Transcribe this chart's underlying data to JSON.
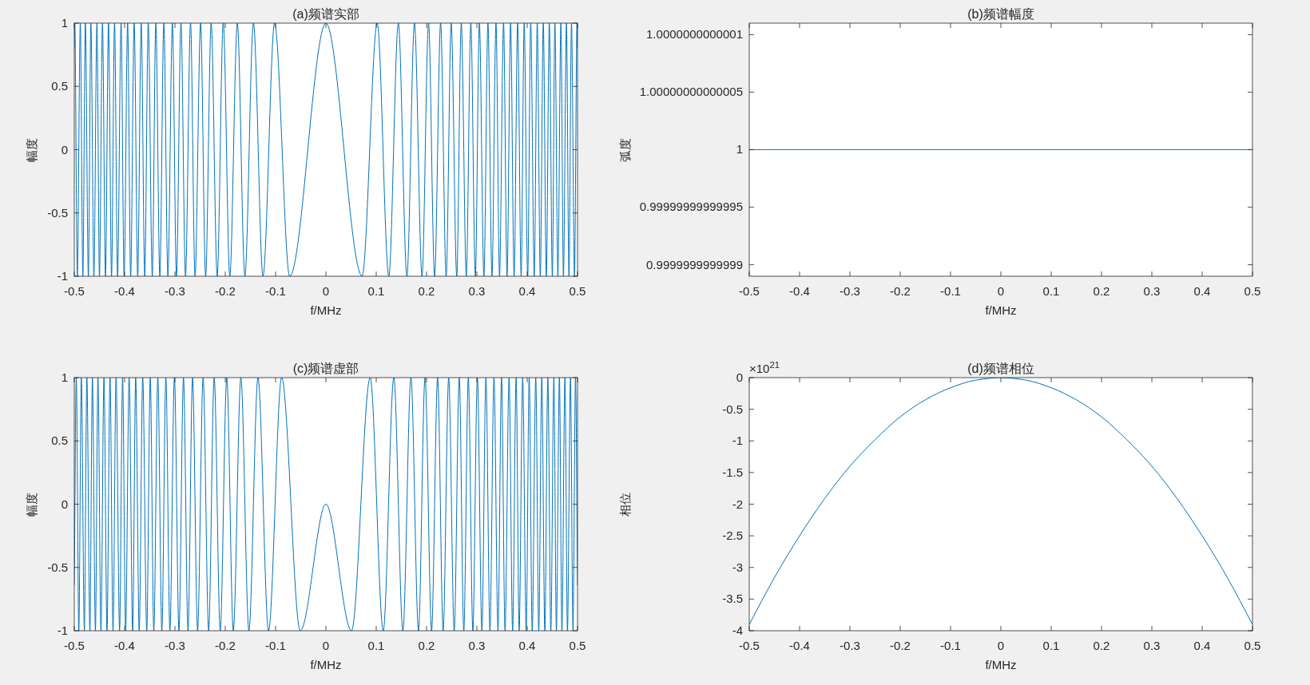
{
  "chart_data": [
    {
      "type": "line",
      "title": "(a)频谱实部",
      "xlabel": "f/MHz",
      "ylabel": "幅度",
      "xlim": [
        -0.5,
        0.5
      ],
      "xticks": [
        -0.5,
        -0.4,
        -0.3,
        -0.2,
        -0.1,
        0,
        0.1,
        0.2,
        0.3,
        0.4,
        0.5
      ],
      "ylim": [
        -1,
        1
      ],
      "yticks": [
        -1,
        -0.5,
        0,
        0.5,
        1
      ],
      "grid": false,
      "series": [
        {
          "color": "#0072bd",
          "x": [
            -0.5,
            -0.499,
            -0.494,
            -0.488,
            -0.483,
            -0.478,
            -0.472,
            -0.467,
            -0.461,
            -0.455,
            -0.45,
            -0.444,
            -0.438,
            -0.432,
            -0.426,
            -0.42,
            -0.414,
            -0.407,
            -0.401,
            -0.394,
            -0.388,
            -0.381,
            -0.374,
            -0.367,
            -0.36,
            -0.353,
            -0.345,
            -0.338,
            -0.33,
            -0.322,
            -0.314,
            -0.305,
            -0.297,
            -0.288,
            -0.279,
            -0.269,
            -0.26,
            -0.249,
            -0.239,
            -0.228,
            -0.216,
            -0.204,
            -0.191,
            -0.176,
            -0.161,
            -0.144,
            -0.125,
            -0.102,
            -0.072,
            0,
            0.072,
            0.102,
            0.125,
            0.144,
            0.161,
            0.176,
            0.191,
            0.204,
            0.216,
            0.228,
            0.239,
            0.249,
            0.26,
            0.269,
            0.279,
            0.288,
            0.297,
            0.305,
            0.314,
            0.322,
            0.33,
            0.338,
            0.345,
            0.353,
            0.36,
            0.367,
            0.374,
            0.381,
            0.388,
            0.394,
            0.401,
            0.407,
            0.414,
            0.42,
            0.426,
            0.432,
            0.438,
            0.444,
            0.45,
            0.455,
            0.461,
            0.467,
            0.472,
            0.478,
            0.483,
            0.488,
            0.494,
            0.499,
            0.5
          ],
          "values": [
            0.8,
            1,
            -1,
            1,
            -1,
            1,
            -1,
            1,
            -1,
            1,
            -1,
            1,
            -1,
            1,
            -1,
            1,
            -1,
            1,
            -1,
            1,
            -1,
            1,
            -1,
            1,
            -1,
            1,
            -1,
            1,
            -1,
            1,
            -1,
            1,
            -1,
            1,
            -1,
            1,
            -1,
            1,
            -1,
            1,
            -1,
            1,
            -1,
            1,
            -1,
            1,
            -1,
            1,
            -1,
            1,
            -1,
            1,
            -1,
            1,
            -1,
            1,
            -1,
            1,
            -1,
            1,
            -1,
            1,
            -1,
            1,
            -1,
            1,
            -1,
            1,
            -1,
            1,
            -1,
            1,
            -1,
            1,
            -1,
            1,
            -1,
            1,
            -1,
            1,
            -1,
            1,
            -1,
            1,
            -1,
            1,
            -1,
            1,
            -1,
            1,
            -1,
            1,
            -1,
            1,
            -1,
            1,
            -1,
            1,
            0.8
          ]
        }
      ]
    },
    {
      "type": "line",
      "title": "(b)频谱幅度",
      "xlabel": "f/MHz",
      "ylabel": "弧度",
      "xlim": [
        -0.5,
        0.5
      ],
      "xticks": [
        -0.5,
        -0.4,
        -0.3,
        -0.2,
        -0.1,
        0,
        0.1,
        0.2,
        0.3,
        0.4,
        0.5
      ],
      "ylim": [
        0.99999999999989,
        1.00000000000011
      ],
      "yticks": [
        {
          "value": 0.9999999999999,
          "label": "0.9999999999999"
        },
        {
          "value": 0.99999999999995,
          "label": "0.99999999999995"
        },
        {
          "value": 1,
          "label": "1"
        },
        {
          "value": 1.00000000000005,
          "label": "1.00000000000005"
        },
        {
          "value": 1.0000000000001,
          "label": "1.0000000000001"
        }
      ],
      "grid": false,
      "series": [
        {
          "color": "#0072bd",
          "x": [
            -0.5,
            0.5
          ],
          "values": [
            1,
            1
          ]
        }
      ]
    },
    {
      "type": "line",
      "title": "(c)频谱虚部",
      "xlabel": "f/MHz",
      "ylabel": "幅度",
      "xlim": [
        -0.5,
        0.5
      ],
      "xticks": [
        -0.5,
        -0.4,
        -0.3,
        -0.2,
        -0.1,
        0,
        0.1,
        0.2,
        0.3,
        0.4,
        0.5
      ],
      "ylim": [
        -1,
        1
      ],
      "yticks": [
        -1,
        -0.5,
        0,
        0.5,
        1
      ],
      "grid": false,
      "series": [
        {
          "color": "#0072bd",
          "x": [
            -0.5,
            -0.496,
            -0.491,
            -0.486,
            -0.48,
            -0.475,
            -0.469,
            -0.464,
            -0.458,
            -0.453,
            -0.447,
            -0.441,
            -0.435,
            -0.429,
            -0.423,
            -0.417,
            -0.41,
            -0.404,
            -0.398,
            -0.391,
            -0.384,
            -0.378,
            -0.371,
            -0.364,
            -0.356,
            -0.349,
            -0.342,
            -0.334,
            -0.326,
            -0.318,
            -0.31,
            -0.301,
            -0.292,
            -0.283,
            -0.274,
            -0.265,
            -0.255,
            -0.244,
            -0.233,
            -0.222,
            -0.21,
            -0.197,
            -0.184,
            -0.169,
            -0.153,
            -0.135,
            -0.114,
            -0.088,
            -0.051,
            0,
            0.051,
            0.088,
            0.114,
            0.135,
            0.153,
            0.169,
            0.184,
            0.197,
            0.21,
            0.222,
            0.233,
            0.244,
            0.255,
            0.265,
            0.274,
            0.283,
            0.292,
            0.301,
            0.31,
            0.318,
            0.326,
            0.334,
            0.342,
            0.349,
            0.356,
            0.364,
            0.371,
            0.378,
            0.384,
            0.391,
            0.398,
            0.404,
            0.41,
            0.417,
            0.423,
            0.429,
            0.435,
            0.441,
            0.447,
            0.453,
            0.458,
            0.464,
            0.469,
            0.475,
            0.48,
            0.486,
            0.491,
            0.496,
            0.5
          ],
          "values": [
            -0.64,
            1,
            -1,
            1,
            -1,
            1,
            -1,
            1,
            -1,
            1,
            -1,
            1,
            -1,
            1,
            -1,
            1,
            -1,
            1,
            -1,
            1,
            -1,
            1,
            -1,
            1,
            -1,
            1,
            -1,
            1,
            -1,
            1,
            -1,
            1,
            -1,
            1,
            -1,
            1,
            -1,
            1,
            -1,
            1,
            -1,
            1,
            -1,
            1,
            -1,
            1,
            -1,
            1,
            -1,
            0,
            -1,
            1,
            -1,
            1,
            -1,
            1,
            -1,
            1,
            -1,
            1,
            -1,
            1,
            -1,
            1,
            -1,
            1,
            -1,
            1,
            -1,
            1,
            -1,
            1,
            -1,
            1,
            -1,
            1,
            -1,
            1,
            -1,
            1,
            -1,
            1,
            -1,
            1,
            -1,
            1,
            -1,
            1,
            -1,
            1,
            -1,
            1,
            -1,
            1,
            -1,
            1,
            -1,
            1,
            -0.64
          ]
        }
      ]
    },
    {
      "type": "line",
      "title": "(d)频谱相位",
      "xlabel": "f/MHz",
      "ylabel": "相位",
      "xlim": [
        -0.5,
        0.5
      ],
      "xticks": [
        -0.5,
        -0.4,
        -0.3,
        -0.2,
        -0.1,
        0,
        0.1,
        0.2,
        0.3,
        0.4,
        0.5
      ],
      "ylim": [
        -4,
        0
      ],
      "yticks": [
        -4,
        -3.5,
        -3,
        -2.5,
        -2,
        -1.5,
        -1,
        -0.5,
        0
      ],
      "grid": false,
      "annotations": [
        "×10$^{21}$"
      ],
      "series": [
        {
          "color": "#0072bd",
          "x": [
            -0.5,
            -0.45,
            -0.4,
            -0.35,
            -0.3,
            -0.25,
            -0.2,
            -0.15,
            -0.1,
            -0.05,
            0,
            0.05,
            0.1,
            0.15,
            0.2,
            0.25,
            0.3,
            0.35,
            0.4,
            0.45,
            0.5
          ],
          "values": [
            -3.9,
            -3.16,
            -2.5,
            -1.91,
            -1.4,
            -0.98,
            -0.62,
            -0.35,
            -0.16,
            -0.04,
            0,
            -0.04,
            -0.16,
            -0.35,
            -0.62,
            -0.98,
            -1.4,
            -1.91,
            -2.5,
            -3.16,
            -3.9
          ]
        }
      ]
    }
  ]
}
